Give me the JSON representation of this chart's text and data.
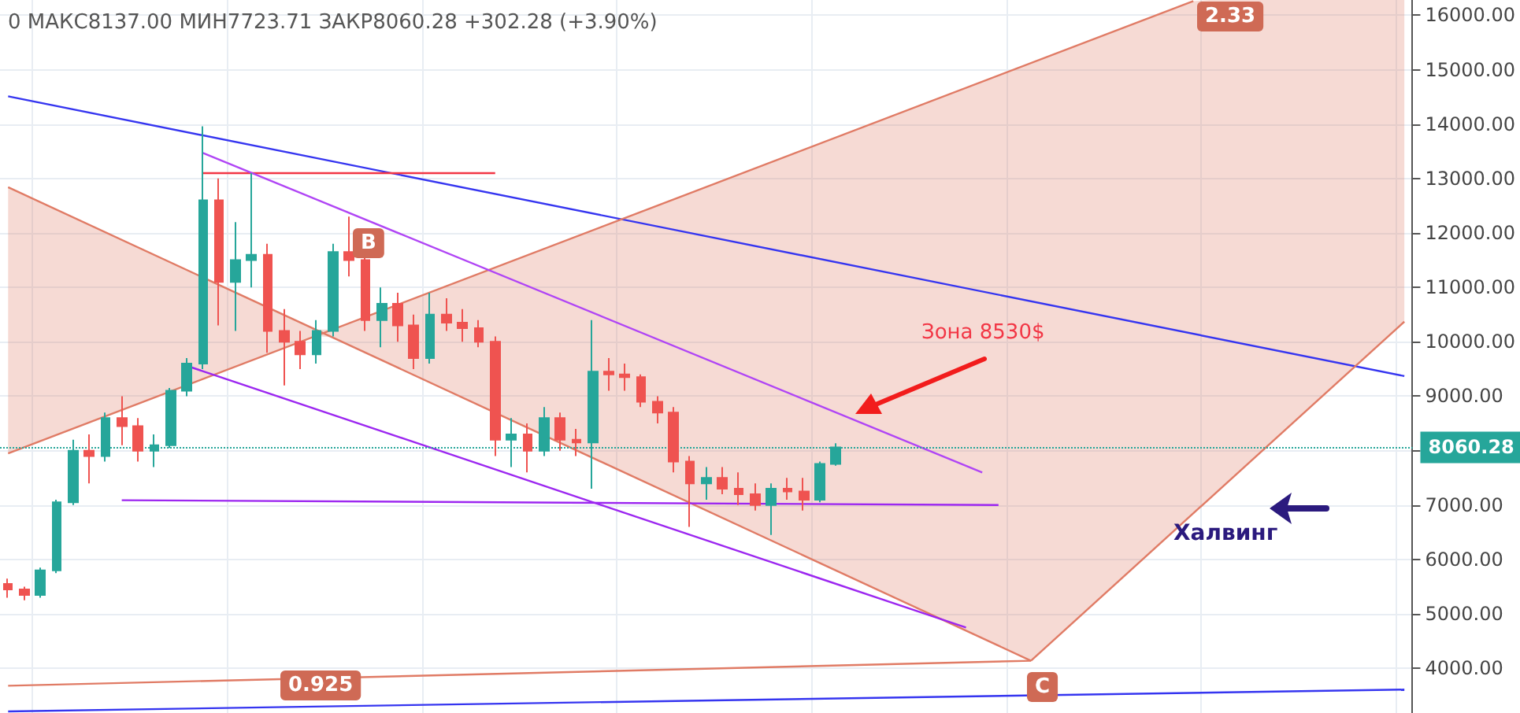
{
  "chart_data": {
    "type": "candlestick",
    "title": "0 МАКС8137.00 МИН7723.71 ЗАКР8060.28 +302.28 (+3.90%)",
    "categories": [
      null,
      null,
      null,
      null,
      null,
      null,
      null,
      null,
      null,
      null,
      null,
      null,
      null,
      null,
      null,
      null,
      null,
      null,
      null,
      null,
      null,
      null,
      null,
      null,
      null,
      null,
      null,
      null,
      null,
      null,
      null,
      null,
      null,
      null,
      null,
      null,
      null,
      null,
      null,
      null,
      null,
      null,
      null,
      null,
      null,
      null,
      null,
      null,
      null,
      null,
      null,
      null,
      null,
      null,
      null,
      null,
      null,
      null,
      null,
      null,
      null,
      null,
      null,
      null,
      null,
      null,
      null,
      null,
      null,
      null,
      null,
      null,
      null,
      null,
      null,
      null,
      null,
      null,
      null,
      null,
      null,
      null,
      null,
      null,
      null,
      null,
      null
    ],
    "ohlc": [
      [
        5550,
        5650,
        5300,
        5450
      ],
      [
        5450,
        5500,
        5250,
        5350
      ],
      [
        5350,
        5850,
        5300,
        5800
      ],
      [
        5800,
        7100,
        5750,
        7050
      ],
      [
        7050,
        8200,
        7000,
        8000
      ],
      [
        8000,
        8300,
        7400,
        7900
      ],
      [
        7900,
        8700,
        7800,
        8600
      ],
      [
        8600,
        9000,
        8100,
        8450
      ],
      [
        8450,
        8600,
        7800,
        8000
      ],
      [
        8000,
        8300,
        7700,
        8100
      ],
      [
        8100,
        9150,
        8050,
        9100
      ],
      [
        9100,
        9700,
        9000,
        9600
      ],
      [
        9600,
        13960,
        9500,
        12600
      ],
      [
        12600,
        13000,
        10300,
        11100
      ],
      [
        11100,
        12200,
        10200,
        11500
      ],
      [
        11500,
        13100,
        11000,
        11600
      ],
      [
        11600,
        11800,
        9800,
        10200
      ],
      [
        10200,
        10600,
        9200,
        10000
      ],
      [
        10000,
        10200,
        9500,
        9770
      ],
      [
        9770,
        10400,
        9600,
        10200
      ],
      [
        10200,
        11800,
        10100,
        11650
      ],
      [
        11650,
        12300,
        11200,
        11500
      ],
      [
        11500,
        11600,
        10200,
        10400
      ],
      [
        10400,
        11000,
        9900,
        10700
      ],
      [
        10700,
        10900,
        10000,
        10300
      ],
      [
        10300,
        10500,
        9500,
        9700
      ],
      [
        9700,
        10900,
        9600,
        10500
      ],
      [
        10500,
        10800,
        10200,
        10350
      ],
      [
        10350,
        10600,
        10000,
        10250
      ],
      [
        10250,
        10400,
        9900,
        10000
      ],
      [
        10000,
        10100,
        7900,
        8200
      ],
      [
        8200,
        8600,
        7700,
        8300
      ],
      [
        8300,
        8500,
        7600,
        8000
      ],
      [
        8000,
        8800,
        7900,
        8600
      ],
      [
        8600,
        8700,
        8000,
        8200
      ],
      [
        8200,
        8400,
        7900,
        8150
      ],
      [
        8150,
        10400,
        7300,
        9450
      ],
      [
        9450,
        9700,
        9100,
        9400
      ],
      [
        9400,
        9600,
        9100,
        9350
      ],
      [
        9350,
        9400,
        8800,
        8900
      ],
      [
        8900,
        9000,
        8500,
        8700
      ],
      [
        8700,
        8800,
        7600,
        7800
      ],
      [
        7800,
        7900,
        6600,
        7400
      ],
      [
        7400,
        7700,
        7100,
        7500
      ],
      [
        7500,
        7700,
        7200,
        7300
      ],
      [
        7300,
        7600,
        7000,
        7200
      ],
      [
        7200,
        7400,
        6900,
        7000
      ],
      [
        7000,
        7400,
        6450,
        7300
      ],
      [
        7300,
        7500,
        7100,
        7250
      ],
      [
        7250,
        7500,
        6900,
        7100
      ],
      [
        7100,
        7800,
        7050,
        7758
      ],
      [
        7758,
        8137,
        7723.71,
        8060.28
      ],
      null,
      null,
      null,
      null,
      null,
      null,
      null,
      null,
      null,
      null,
      null,
      null,
      null,
      null,
      null,
      null,
      null,
      null,
      null,
      null,
      null,
      null,
      null,
      null,
      null,
      null,
      null,
      null,
      null,
      null,
      null,
      null,
      null,
      null,
      null
    ],
    "series": [
      {
        "type": "line",
        "color": "#3535f0",
        "values": [
          14510,
          null,
          null,
          null,
          null,
          null,
          null,
          null,
          null,
          null,
          null,
          null,
          null,
          null,
          null,
          null,
          null,
          null,
          null,
          null,
          null,
          null,
          null,
          null,
          null,
          null,
          null,
          null,
          null,
          null,
          null,
          null,
          null,
          null,
          null,
          null,
          null,
          null,
          null,
          null,
          null,
          null,
          null,
          null,
          null,
          null,
          null,
          null,
          null,
          null,
          null,
          null,
          null,
          null,
          null,
          null,
          null,
          null,
          null,
          null,
          null,
          null,
          null,
          null,
          null,
          null,
          null,
          null,
          null,
          null,
          null,
          null,
          null,
          null,
          null,
          null,
          null,
          null,
          null,
          null,
          null,
          null,
          null,
          null,
          null,
          null,
          9370
        ]
      },
      {
        "type": "line",
        "color": "#3535f0",
        "values": [
          3210,
          null,
          null,
          null,
          null,
          null,
          null,
          null,
          null,
          null,
          null,
          null,
          null,
          null,
          null,
          null,
          null,
          null,
          null,
          null,
          null,
          null,
          null,
          null,
          null,
          null,
          null,
          null,
          null,
          null,
          null,
          null,
          null,
          null,
          null,
          null,
          null,
          null,
          null,
          null,
          null,
          null,
          null,
          null,
          null,
          null,
          null,
          null,
          null,
          null,
          null,
          null,
          null,
          null,
          null,
          null,
          null,
          null,
          null,
          null,
          null,
          null,
          null,
          null,
          null,
          null,
          null,
          null,
          null,
          null,
          null,
          null,
          null,
          null,
          null,
          null,
          null,
          null,
          null,
          null,
          null,
          null,
          null,
          null,
          null,
          null,
          3610
        ]
      },
      {
        "type": "line",
        "color": "#e07b65",
        "values": [
          12840,
          null,
          null,
          null,
          null,
          null,
          null,
          null,
          null,
          null,
          null,
          null,
          null,
          null,
          null,
          null,
          null,
          null,
          null,
          null,
          null,
          null,
          null,
          null,
          null,
          null,
          null,
          null,
          null,
          null,
          null,
          null,
          null,
          null,
          null,
          null,
          null,
          null,
          null,
          null,
          null,
          null,
          null,
          null,
          null,
          null,
          null,
          null,
          null,
          null,
          null,
          null,
          null,
          null,
          null,
          null,
          null,
          null,
          null,
          null,
          null,
          null,
          null,
          4140,
          null,
          null,
          null,
          null,
          null,
          null,
          null,
          null,
          null,
          null,
          null,
          null,
          null,
          null,
          null,
          null,
          null,
          null,
          null,
          null,
          null,
          null,
          null
        ]
      },
      {
        "type": "line",
        "color": "#e07b65",
        "values": [
          null,
          null,
          null,
          null,
          null,
          null,
          null,
          null,
          null,
          null,
          null,
          null,
          null,
          null,
          null,
          null,
          null,
          null,
          null,
          null,
          null,
          null,
          null,
          null,
          null,
          null,
          null,
          null,
          null,
          null,
          null,
          null,
          null,
          null,
          null,
          null,
          null,
          null,
          null,
          null,
          null,
          null,
          null,
          null,
          null,
          null,
          null,
          null,
          null,
          null,
          null,
          null,
          null,
          null,
          null,
          null,
          null,
          null,
          null,
          null,
          null,
          null,
          null,
          4140,
          null,
          null,
          null,
          null,
          null,
          null,
          null,
          null,
          null,
          null,
          null,
          null,
          null,
          null,
          null,
          null,
          null,
          null,
          null,
          null,
          null,
          null,
          10370
        ]
      },
      {
        "type": "line",
        "color": "#e07b65",
        "lower": [
          7950,
          8060,
          8180,
          8290,
          8410,
          8520,
          8630,
          8750,
          8860,
          8980,
          9090,
          9200,
          9320,
          9430,
          9540,
          9660,
          9770,
          9890,
          10000,
          10110,
          10080,
          9940,
          9800,
          9660,
          9530,
          9390,
          9250,
          9110,
          8970,
          8840,
          8700,
          8560,
          8420,
          8280,
          8150,
          8010,
          7870,
          7730,
          7590,
          7450,
          7320,
          7180,
          7040,
          6900,
          6760,
          6630,
          6490,
          6350,
          6210,
          6070,
          5940,
          5800,
          5660,
          5520,
          5380,
          5250,
          5110,
          4970,
          4830,
          4690,
          4550,
          4420,
          4280,
          4140,
          4410,
          4680,
          4950,
          5220,
          5490,
          5770,
          6040,
          6310,
          6580,
          6850,
          7120,
          7390,
          7660,
          7930,
          8200,
          8470,
          8750,
          9020,
          9290,
          9560,
          9830,
          10100,
          10370
        ],
        "upper": [
          12840,
          12700,
          12560,
          12430,
          12290,
          12150,
          12010,
          11870,
          11740,
          11600,
          11460,
          11320,
          11180,
          11050,
          10910,
          10770,
          10630,
          10490,
          10350,
          10220,
          10230,
          10340,
          10450,
          10570,
          10680,
          10800,
          10910,
          11020,
          11140,
          11250,
          11370,
          11480,
          11590,
          11710,
          11820,
          11930,
          12050,
          12160,
          12280,
          12390,
          12500,
          12620,
          12730,
          12850,
          12960,
          13070,
          13190,
          13300,
          13410,
          13530,
          13640,
          13760,
          13870,
          13980,
          14100,
          14210,
          14330,
          14440,
          14550,
          14670,
          14780,
          14890,
          15010,
          15120,
          15240,
          15350,
          15460,
          15580,
          15690,
          15810,
          15920,
          16030,
          16150,
          16260,
          16280,
          16280,
          16280,
          16280,
          16280,
          16280,
          16280,
          16280,
          16280,
          16280,
          16280,
          16280,
          16280
        ],
        "values": [
          7950,
          null,
          null,
          null,
          null,
          null,
          null,
          null,
          null,
          null,
          null,
          null,
          null,
          null,
          null,
          null,
          null,
          null,
          null,
          null,
          null,
          null,
          null,
          null,
          null,
          null,
          null,
          null,
          null,
          null,
          null,
          null,
          null,
          null,
          null,
          null,
          null,
          null,
          null,
          null,
          null,
          null,
          null,
          null,
          null,
          null,
          null,
          null,
          null,
          null,
          null,
          null,
          null,
          null,
          null,
          null,
          null,
          null,
          null,
          null,
          null,
          null,
          null,
          null,
          null,
          null,
          null,
          null,
          null,
          null,
          null,
          null,
          null,
          16260,
          null,
          null,
          null,
          null,
          null,
          null,
          null,
          null,
          null,
          null,
          null,
          null,
          null
        ]
      },
      {
        "type": "line",
        "color": "#e07b65",
        "values": [
          3680,
          null,
          null,
          null,
          null,
          null,
          null,
          null,
          null,
          null,
          null,
          null,
          null,
          null,
          null,
          null,
          null,
          null,
          null,
          null,
          null,
          null,
          null,
          null,
          null,
          null,
          null,
          null,
          null,
          null,
          null,
          null,
          null,
          null,
          null,
          null,
          null,
          null,
          null,
          null,
          null,
          null,
          null,
          null,
          null,
          null,
          null,
          null,
          null,
          null,
          null,
          null,
          null,
          null,
          null,
          null,
          null,
          null,
          null,
          null,
          null,
          null,
          null,
          4140,
          null,
          null,
          null,
          null,
          null,
          null,
          null,
          null,
          null,
          null,
          null,
          null,
          null,
          null,
          null,
          null,
          null,
          null,
          null,
          null,
          null,
          null,
          null
        ]
      },
      {
        "type": "line",
        "color": "#f23645",
        "values": [
          null,
          null,
          null,
          null,
          null,
          null,
          null,
          null,
          null,
          null,
          null,
          null,
          13100,
          null,
          null,
          null,
          null,
          null,
          null,
          null,
          null,
          null,
          null,
          null,
          null,
          null,
          null,
          null,
          null,
          null,
          13100,
          null,
          null,
          null,
          null,
          null,
          null,
          null,
          null,
          null,
          null,
          null,
          null,
          null,
          null,
          null,
          null,
          null,
          null,
          null,
          null,
          null,
          null,
          null,
          null,
          null,
          null,
          null,
          null,
          null,
          null,
          null,
          null,
          null,
          null,
          null,
          null,
          null,
          null,
          null,
          null,
          null,
          null,
          null,
          null,
          null,
          null,
          null,
          null,
          null,
          null,
          null,
          null,
          null,
          null,
          null,
          null
        ]
      },
      {
        "type": "line",
        "color": "#b045f5",
        "values": [
          null,
          null,
          null,
          null,
          null,
          null,
          null,
          null,
          null,
          null,
          null,
          null,
          13470,
          null,
          null,
          null,
          null,
          null,
          null,
          null,
          null,
          null,
          null,
          null,
          null,
          null,
          null,
          null,
          null,
          null,
          null,
          null,
          null,
          null,
          null,
          null,
          null,
          null,
          null,
          null,
          null,
          null,
          null,
          null,
          null,
          null,
          null,
          null,
          null,
          null,
          null,
          null,
          null,
          null,
          null,
          null,
          null,
          null,
          null,
          null,
          7600,
          null,
          null,
          null,
          null,
          null,
          null,
          null,
          null,
          null,
          null,
          null,
          null,
          null,
          null,
          null,
          null,
          null,
          null,
          null,
          null,
          null,
          null,
          null,
          null,
          null,
          null
        ]
      },
      {
        "type": "line",
        "color": "#9c27f0",
        "values": [
          null,
          null,
          null,
          null,
          null,
          null,
          null,
          null,
          null,
          null,
          null,
          9560,
          null,
          null,
          null,
          null,
          null,
          null,
          null,
          null,
          null,
          null,
          null,
          null,
          null,
          null,
          null,
          null,
          null,
          null,
          null,
          null,
          null,
          null,
          null,
          null,
          null,
          null,
          null,
          null,
          null,
          null,
          null,
          null,
          null,
          null,
          null,
          null,
          null,
          null,
          null,
          null,
          null,
          null,
          null,
          null,
          null,
          null,
          null,
          4750,
          null,
          null,
          null,
          null,
          null,
          null,
          null,
          null,
          null,
          null,
          null,
          null,
          null,
          null,
          null,
          null,
          null,
          null,
          null,
          null,
          null,
          null,
          null,
          null,
          null,
          null,
          null
        ]
      },
      {
        "type": "line",
        "color": "#9c27f0",
        "values": [
          null,
          null,
          null,
          null,
          null,
          null,
          null,
          7090,
          null,
          null,
          null,
          null,
          null,
          null,
          null,
          null,
          null,
          null,
          null,
          null,
          null,
          null,
          null,
          null,
          null,
          null,
          null,
          null,
          null,
          null,
          null,
          null,
          null,
          null,
          null,
          null,
          null,
          null,
          null,
          null,
          null,
          null,
          null,
          null,
          null,
          null,
          null,
          null,
          null,
          null,
          null,
          null,
          null,
          null,
          null,
          null,
          null,
          null,
          null,
          null,
          null,
          7000,
          null,
          null,
          null,
          null,
          null,
          null,
          null,
          null,
          null,
          null,
          null,
          null,
          null,
          null,
          null,
          null,
          null,
          null,
          null,
          null,
          null,
          null,
          null,
          null,
          null
        ]
      }
    ],
    "ylim": [
      3180,
      16280
    ],
    "yticks": [
      {
        "value": 4000,
        "label": "4000.00"
      },
      {
        "value": 5000,
        "label": "5000.00"
      },
      {
        "value": 6000,
        "label": "6000.00"
      },
      {
        "value": 7000,
        "label": "7000.00"
      },
      {
        "value": 8000,
        "label": null
      },
      {
        "value": 9000,
        "label": "9000.00"
      },
      {
        "value": 10000,
        "label": "10000.00"
      },
      {
        "value": 11000,
        "label": "11000.00"
      },
      {
        "value": 12000,
        "label": "12000.00"
      },
      {
        "value": 13000,
        "label": "13000.00"
      },
      {
        "value": 14000,
        "label": "14000.00"
      },
      {
        "value": 15000,
        "label": "15000.00"
      },
      {
        "value": 16000,
        "label": "16000.00"
      }
    ],
    "ref_lines": [
      {
        "axis": "y",
        "value": 8060.28,
        "label": "8060.28",
        "color": "#26a69a",
        "line_style": "dotted"
      }
    ],
    "annotations": [
      "Зона 8530$",
      "Халвинг",
      "B",
      "C",
      "2.33",
      "0.925"
    ],
    "grid": true,
    "marker": "none",
    "tick_labels": "y"
  }
}
